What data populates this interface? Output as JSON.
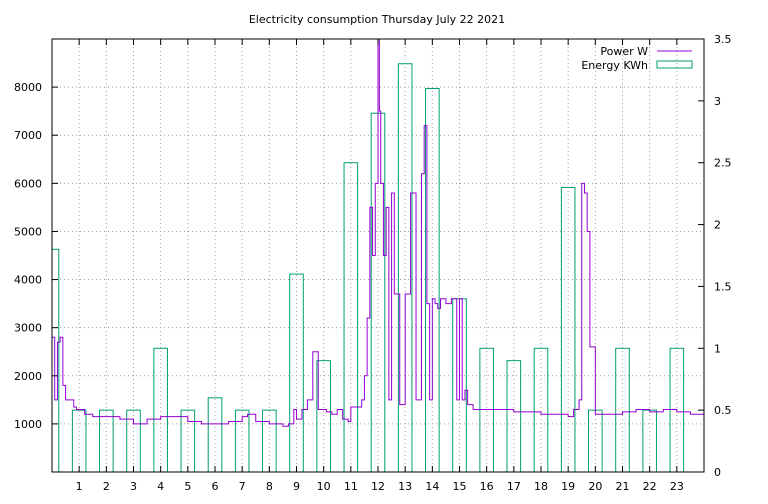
{
  "chart_data": {
    "type": "line",
    "title": "Electricity consumption Thursday July 22 2021",
    "x_ticks": [
      "1",
      "2",
      "3",
      "4",
      "5",
      "6",
      "7",
      "8",
      "9",
      "10",
      "11",
      "12",
      "13",
      "14",
      "15",
      "16",
      "17",
      "18",
      "19",
      "20",
      "21",
      "22",
      "23"
    ],
    "xlim": [
      0,
      24
    ],
    "y_left": {
      "ticks": [
        "1000",
        "2000",
        "3000",
        "4000",
        "5000",
        "6000",
        "7000",
        "8000"
      ],
      "lim": [
        0,
        9000
      ]
    },
    "y_right": {
      "ticks": [
        "0",
        "0.5",
        "1",
        "1.5",
        "2",
        "2.5",
        "3",
        "3.5"
      ],
      "lim": [
        0,
        3.5
      ]
    },
    "grid": true,
    "legend_position": "top-right",
    "colors": {
      "power": "#9400d3",
      "energy": "#009e73"
    },
    "series": [
      {
        "name": "Power W",
        "axis": "left",
        "type": "line",
        "x": [
          0.0,
          0.1,
          0.2,
          0.3,
          0.4,
          0.5,
          0.6,
          0.8,
          0.9,
          1.0,
          1.2,
          1.5,
          2.0,
          2.5,
          3.0,
          3.5,
          4.0,
          4.5,
          5.0,
          5.5,
          6.0,
          6.5,
          7.0,
          7.2,
          7.5,
          7.8,
          8.0,
          8.5,
          8.7,
          8.9,
          9.0,
          9.2,
          9.4,
          9.6,
          9.8,
          10.0,
          10.1,
          10.3,
          10.5,
          10.7,
          10.9,
          11.0,
          11.2,
          11.4,
          11.5,
          11.6,
          11.7,
          11.8,
          11.9,
          12.0,
          12.05,
          12.1,
          12.2,
          12.3,
          12.4,
          12.5,
          12.6,
          12.8,
          13.0,
          13.2,
          13.4,
          13.6,
          13.7,
          13.8,
          13.9,
          14.0,
          14.1,
          14.2,
          14.3,
          14.5,
          14.7,
          14.9,
          15.0,
          15.1,
          15.2,
          15.3,
          15.5,
          16.0,
          16.5,
          17.0,
          17.5,
          18.0,
          18.5,
          19.0,
          19.2,
          19.4,
          19.5,
          19.6,
          19.7,
          19.8,
          20.0,
          20.5,
          21.0,
          21.5,
          22.0,
          22.5,
          23.0,
          23.5,
          24.0
        ],
        "values": [
          2800,
          1500,
          2700,
          2800,
          1800,
          1500,
          1500,
          1350,
          1300,
          1300,
          1200,
          1150,
          1150,
          1100,
          1000,
          1100,
          1150,
          1150,
          1050,
          1000,
          1000,
          1050,
          1150,
          1200,
          1050,
          1050,
          1000,
          950,
          1000,
          1300,
          1100,
          1300,
          1500,
          2500,
          1300,
          1300,
          1250,
          1200,
          1300,
          1100,
          1050,
          1350,
          1350,
          1500,
          2000,
          3200,
          5500,
          4500,
          6000,
          9000,
          7500,
          6000,
          4500,
          5500,
          1500,
          5800,
          3700,
          1400,
          3700,
          5800,
          1500,
          6200,
          7200,
          3500,
          1500,
          3600,
          3500,
          3400,
          3600,
          3500,
          3600,
          1500,
          3600,
          1500,
          1700,
          1400,
          1300,
          1300,
          1300,
          1250,
          1250,
          1200,
          1200,
          1150,
          1300,
          1500,
          6000,
          5800,
          5000,
          2600,
          1200,
          1200,
          1250,
          1300,
          1250,
          1300,
          1250,
          1200,
          1250
        ]
      },
      {
        "name": "Energy KWh",
        "axis": "right",
        "type": "bar",
        "x": [
          0,
          1,
          2,
          3,
          4,
          5,
          6,
          7,
          8,
          9,
          10,
          11,
          12,
          13,
          14,
          15,
          16,
          17,
          18,
          19,
          20,
          21,
          22,
          23
        ],
        "values": [
          1.8,
          0.5,
          0.5,
          0.5,
          1.0,
          0.5,
          0.6,
          0.5,
          0.5,
          1.6,
          0.9,
          2.5,
          2.9,
          3.3,
          3.1,
          1.4,
          1.0,
          0.9,
          1.0,
          2.3,
          0.5,
          1.0,
          0.5,
          1.0
        ]
      }
    ]
  }
}
